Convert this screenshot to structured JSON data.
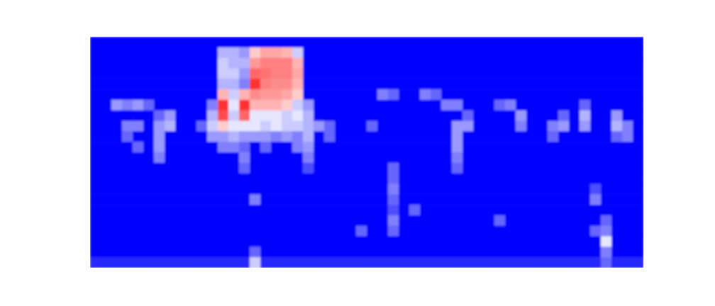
{
  "chart_data": {
    "type": "heatmap",
    "zlim": [
      -1,
      1
    ],
    "tick_labels": false,
    "z": [
      [
        -1,
        -1,
        -1,
        -1,
        -1,
        -1,
        -1,
        -1,
        -1,
        -1,
        -1,
        -1,
        -1,
        -1,
        -1,
        -1,
        -1,
        -1,
        -1,
        -1,
        -1,
        -1,
        -1,
        -1,
        -1,
        -1,
        -1,
        -1,
        -1,
        -1,
        -1,
        -1,
        -1,
        -1,
        -1,
        -1,
        -1,
        -1,
        -1,
        -1,
        -1,
        -1,
        -1,
        -1,
        -1,
        -1,
        -1,
        -1,
        -1,
        -1,
        -1,
        -1
      ],
      [
        -1,
        -1,
        -1,
        -1,
        -1,
        -1,
        -1,
        -1,
        -1,
        -1,
        -1,
        -1,
        -0.3,
        -0.3,
        -0.4,
        0.2,
        0.35,
        0.35,
        0.3,
        -0.2,
        -1,
        -1,
        -1,
        -1,
        -1,
        -1,
        -1,
        -1,
        -1,
        -1,
        -1,
        -1,
        -1,
        -1,
        -1,
        -1,
        -1,
        -1,
        -1,
        -1,
        -1,
        -1,
        -1,
        -1,
        -1,
        -1,
        -1,
        -1,
        -1,
        -1,
        -1,
        -1
      ],
      [
        -1,
        -1,
        -1,
        -1,
        -1,
        -1,
        -1,
        -1,
        -1,
        -1,
        -1,
        -1,
        -0.2,
        -0.3,
        -0.3,
        0.4,
        0.5,
        0.5,
        0.5,
        0.3,
        -1,
        -1,
        -1,
        -1,
        -1,
        -1,
        -1,
        -1,
        -1,
        -1,
        -1,
        -1,
        -1,
        -1,
        -1,
        -1,
        -1,
        -1,
        -1,
        -1,
        -1,
        -1,
        -1,
        -1,
        -1,
        -1,
        -1,
        -1,
        -1,
        -1,
        -1,
        -1
      ],
      [
        -1,
        -1,
        -1,
        -1,
        -1,
        -1,
        -1,
        -1,
        -1,
        -1,
        -1,
        -1,
        -0.2,
        -0.2,
        -0.4,
        0.6,
        0.55,
        0.5,
        0.5,
        0.35,
        -1,
        -1,
        -1,
        -1,
        -1,
        -1,
        -1,
        -1,
        -1,
        -1,
        -1,
        -1,
        -1,
        -1,
        -1,
        -1,
        -1,
        -1,
        -1,
        -1,
        -1,
        -1,
        -1,
        -1,
        -1,
        -1,
        -1,
        -1,
        -1,
        -1,
        -1,
        -1
      ],
      [
        -1,
        -1,
        -1,
        -1,
        -1,
        -1,
        -1,
        -1,
        -1,
        -1,
        -1,
        -1,
        -0.3,
        -0.3,
        -0.5,
        0.8,
        0.5,
        0.45,
        0.45,
        0.3,
        -1,
        -1,
        -1,
        -1,
        -1,
        -1,
        -1,
        -1,
        -1,
        -1,
        -1,
        -1,
        -1,
        -1,
        -1,
        -1,
        -1,
        -1,
        -1,
        -1,
        -1,
        -1,
        -1,
        -1,
        -1,
        -1,
        -1,
        -1,
        -1,
        -1,
        -1,
        -1
      ],
      [
        -1,
        -1,
        -1,
        -1,
        -1,
        -1,
        -1,
        -1,
        -1,
        -1,
        -1,
        -1,
        0.3,
        -0.2,
        0.3,
        0.45,
        0.4,
        0.4,
        0.35,
        0.2,
        -1,
        -1,
        -1,
        -1,
        -1,
        -1,
        -1,
        -0.5,
        -0.6,
        -1,
        -1,
        -0.5,
        -0.6,
        -1,
        -1,
        -1,
        -1,
        -1,
        -1,
        -1,
        -1,
        -1,
        -1,
        -1,
        -1,
        -1,
        -1,
        -1,
        -1,
        -1,
        -1,
        -1
      ],
      [
        -1,
        -1,
        -0.4,
        -0.5,
        -0.4,
        -0.6,
        -1,
        -1,
        -1,
        -1,
        -1,
        -0.5,
        0.8,
        -0.1,
        0.8,
        0.3,
        0.3,
        0.3,
        0.2,
        -0.2,
        -0.4,
        -1,
        -1,
        -1,
        -1,
        -1,
        -1,
        -1,
        -1,
        -1,
        -1,
        -1,
        -1,
        -0.5,
        -0.5,
        -1,
        -1,
        -1,
        -0.6,
        -0.5,
        -1,
        -1,
        -1,
        -1,
        -1,
        -1,
        -0.6,
        -1,
        -1,
        -1,
        -1,
        -1
      ],
      [
        -1,
        -1,
        -1,
        -1,
        -1,
        -1,
        -0.6,
        -0.4,
        -1,
        -1,
        -1,
        -0.3,
        0.7,
        -0.2,
        0.6,
        -0.1,
        -0.1,
        -0.1,
        -0.2,
        -0.1,
        -0.3,
        -1,
        -1,
        -1,
        -1,
        -1,
        -1,
        -1,
        -1,
        -1,
        -1,
        -1,
        -1,
        -1,
        -1,
        -0.6,
        -1,
        -1,
        -1,
        -1,
        -0.4,
        -1,
        -1,
        -1,
        -0.6,
        -1,
        -0.3,
        -1,
        -1,
        -0.4,
        -1,
        -1
      ],
      [
        -1,
        -1,
        -1,
        -0.5,
        -0.5,
        -1,
        -0.4,
        -0.3,
        -1,
        -1,
        -0.6,
        -0.2,
        0.2,
        -0.1,
        -0.1,
        -0.1,
        -0.2,
        -0.1,
        -0.2,
        -0.2,
        -0.3,
        -0.4,
        -0.6,
        -1,
        -1,
        -1,
        -0.6,
        -1,
        -1,
        -1,
        -1,
        -1,
        -1,
        -1,
        -0.4,
        -0.4,
        -1,
        -1,
        -1,
        -1,
        -0.5,
        -1,
        -1,
        -0.5,
        -0.4,
        -1,
        -0.4,
        -1,
        -1,
        -0.3,
        -0.5,
        -1
      ],
      [
        -1,
        -1,
        -1,
        -0.6,
        -1,
        -1,
        -0.4,
        -1,
        -1,
        -1,
        -1,
        -0.4,
        -0.4,
        -0.3,
        -0.4,
        -0.4,
        -0.4,
        -0.5,
        -0.4,
        -0.5,
        -0.3,
        -1,
        -0.6,
        -1,
        -1,
        -1,
        -1,
        -1,
        -1,
        -1,
        -1,
        -1,
        -1,
        -1,
        -0.4,
        -1,
        -1,
        -1,
        -1,
        -1,
        -1,
        -1,
        -1,
        -0.6,
        -1,
        -1,
        -1,
        -1,
        -1,
        -0.6,
        -0.5,
        -1
      ],
      [
        -1,
        -1,
        -1,
        -1,
        -0.6,
        -1,
        -0.4,
        -1,
        -1,
        -1,
        -1,
        -1,
        -0.5,
        -0.5,
        -0.6,
        -1,
        -0.6,
        -1,
        -1,
        -0.5,
        -0.4,
        -1,
        -1,
        -1,
        -1,
        -1,
        -1,
        -1,
        -1,
        -1,
        -1,
        -1,
        -1,
        -1,
        -0.4,
        -1,
        -1,
        -1,
        -1,
        -1,
        -1,
        -1,
        -1,
        -1,
        -1,
        -1,
        -1,
        -1,
        -1,
        -1,
        -1,
        -1
      ],
      [
        -1,
        -1,
        -1,
        -1,
        -1,
        -1,
        -0.5,
        -1,
        -1,
        -1,
        -1,
        -1,
        -1,
        -1,
        -0.5,
        -1,
        -1,
        -1,
        -1,
        -1,
        -0.5,
        -1,
        -1,
        -1,
        -1,
        -1,
        -1,
        -1,
        -1,
        -1,
        -1,
        -1,
        -1,
        -1,
        -0.5,
        -1,
        -1,
        -1,
        -1,
        -1,
        -1,
        -1,
        -1,
        -1,
        -1,
        -1,
        -1,
        -1,
        -1,
        -1,
        -1,
        -1
      ],
      [
        -1,
        -1,
        -1,
        -1,
        -1,
        -1,
        -1,
        -1,
        -1,
        -1,
        -1,
        -1,
        -1,
        -1,
        -0.6,
        -1,
        -1,
        -1,
        -1,
        -1,
        -0.7,
        -1,
        -1,
        -1,
        -1,
        -1,
        -1,
        -1,
        -0.6,
        -1,
        -1,
        -1,
        -1,
        -1,
        -0.6,
        -1,
        -1,
        -1,
        -1,
        -1,
        -1,
        -1,
        -1,
        -1,
        -1,
        -1,
        -1,
        -1,
        -1,
        -1,
        -1,
        -1
      ],
      [
        -1,
        -1,
        -1,
        -1,
        -1,
        -1,
        -1,
        -1,
        -1,
        -1,
        -1,
        -1,
        -1,
        -1,
        -1,
        -1,
        -1,
        -1,
        -1,
        -1,
        -1,
        -1,
        -1,
        -1,
        -1,
        -1,
        -1,
        -1,
        -0.6,
        -1,
        -1,
        -1,
        -1,
        -1,
        -1,
        -1,
        -1,
        -1,
        -1,
        -1,
        -1,
        -1,
        -1,
        -1,
        -1,
        -1,
        -1,
        -1,
        -1,
        -1,
        -1,
        -1
      ],
      [
        -1,
        -1,
        -1,
        -1,
        -1,
        -1,
        -1,
        -1,
        -1,
        -1,
        -1,
        -1,
        -1,
        -1,
        -1,
        -1,
        -1,
        -1,
        -1,
        -1,
        -1,
        -1,
        -1,
        -1,
        -1,
        -1,
        -1,
        -1,
        -0.5,
        -1,
        -1,
        -1,
        -1,
        -1,
        -1,
        -1,
        -1,
        -1,
        -1,
        -1,
        -1,
        -1,
        -1,
        -1,
        -1,
        -1,
        -1,
        -0.7,
        -1,
        -1,
        -1,
        -1
      ],
      [
        -1,
        -1,
        -1,
        -1,
        -1,
        -1,
        -1,
        -1,
        -1,
        -1,
        -1,
        -1,
        -1,
        -1,
        -1,
        -0.5,
        -1,
        -1,
        -1,
        -1,
        -1,
        -1,
        -1,
        -1,
        -1,
        -1,
        -1,
        -1,
        -0.6,
        -1,
        -1,
        -1,
        -1,
        -1,
        -1,
        -1,
        -1,
        -1,
        -1,
        -1,
        -1,
        -1,
        -1,
        -1,
        -1,
        -1,
        -1,
        -0.5,
        -1,
        -1,
        -1,
        -1
      ],
      [
        -1,
        -1,
        -1,
        -1,
        -1,
        -1,
        -1,
        -1,
        -1,
        -1,
        -1,
        -1,
        -1,
        -1,
        -1,
        -1,
        -1,
        -1,
        -1,
        -1,
        -1,
        -1,
        -1,
        -1,
        -1,
        -1,
        -1,
        -1,
        -0.7,
        -1,
        -0.6,
        -1,
        -1,
        -1,
        -1,
        -1,
        -1,
        -1,
        -1,
        -1,
        -1,
        -1,
        -1,
        -1,
        -1,
        -1,
        -1,
        -1,
        -1,
        -1,
        -1,
        -1
      ],
      [
        -1,
        -1,
        -1,
        -1,
        -1,
        -1,
        -1,
        -1,
        -1,
        -1,
        -1,
        -1,
        -1,
        -1,
        -1,
        -1,
        -1,
        -1,
        -1,
        -1,
        -1,
        -1,
        -1,
        -1,
        -1,
        -1,
        -1,
        -1,
        -0.5,
        -1,
        -1,
        -1,
        -1,
        -1,
        -1,
        -1,
        -1,
        -1,
        -0.6,
        -1,
        -1,
        -1,
        -1,
        -1,
        -1,
        -1,
        -1,
        -1,
        -0.6,
        -1,
        -1,
        -1
      ],
      [
        -1,
        -1,
        -1,
        -1,
        -1,
        -1,
        -1,
        -1,
        -1,
        -1,
        -1,
        -1,
        -1,
        -1,
        -1,
        -1,
        -1,
        -1,
        -1,
        -1,
        -1,
        -1,
        -1,
        -1,
        -1,
        -0.6,
        -1,
        -1,
        -0.6,
        -1,
        -1,
        -1,
        -1,
        -1,
        -1,
        -1,
        -1,
        -1,
        -1,
        -1,
        -1,
        -1,
        -1,
        -1,
        -1,
        -1,
        -1,
        -0.6,
        -0.5,
        -1,
        -1,
        -1
      ],
      [
        -1,
        -1,
        -1,
        -1,
        -1,
        -1,
        -1,
        -1,
        -1,
        -1,
        -1,
        -1,
        -1,
        -1,
        -1,
        -1,
        -1,
        -1,
        -1,
        -1,
        -1,
        -1,
        -1,
        -1,
        -1,
        -1,
        -1,
        -1,
        -1,
        -1,
        -1,
        -1,
        -1,
        -1,
        -1,
        -1,
        -1,
        -1,
        -1,
        -1,
        -1,
        -1,
        -1,
        -1,
        -1,
        -1,
        -1,
        -1,
        -0.1,
        -1,
        -1,
        -1
      ],
      [
        -1,
        -1,
        -1,
        -1,
        -1,
        -1,
        -1,
        -1,
        -1,
        -1,
        -1,
        -1,
        -1,
        -1,
        -1,
        -0.6,
        -1,
        -1,
        -1,
        -1,
        -1,
        -1,
        -1,
        -1,
        -1,
        -1,
        -1,
        -1,
        -1,
        -1,
        -1,
        -1,
        -1,
        -1,
        -1,
        -1,
        -1,
        -1,
        -1,
        -1,
        -1,
        -1,
        -1,
        -1,
        -1,
        -1,
        -1,
        -1,
        -0.5,
        -1,
        -1,
        -1
      ],
      [
        -0.85,
        -0.85,
        -0.85,
        -0.85,
        -0.85,
        -0.85,
        -0.85,
        -0.85,
        -0.85,
        -0.85,
        -0.85,
        -0.85,
        -0.85,
        -0.85,
        -0.85,
        -0.2,
        -0.85,
        -0.85,
        -0.85,
        -0.85,
        -0.85,
        -0.85,
        -0.85,
        -0.85,
        -0.85,
        -0.85,
        -0.85,
        -0.85,
        -0.85,
        -0.85,
        -0.85,
        -0.85,
        -0.85,
        -0.85,
        -0.85,
        -0.85,
        -0.85,
        -0.85,
        -0.85,
        -0.85,
        -0.85,
        -0.85,
        -0.85,
        -0.85,
        -0.85,
        -0.85,
        -0.85,
        -0.85,
        -0.6,
        -0.85,
        -0.85,
        -0.85
      ]
    ]
  }
}
